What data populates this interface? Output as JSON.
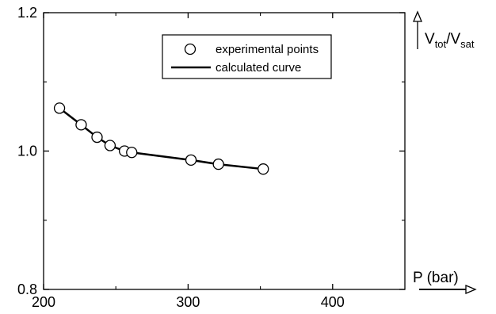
{
  "chart_data": {
    "type": "line",
    "x_ticks": [
      200,
      300,
      400
    ],
    "y_ticks": [
      0.8,
      1.0,
      1.2
    ],
    "xlim": [
      200,
      450
    ],
    "ylim": [
      0.8,
      1.2
    ],
    "x_axis_label": "P (bar)",
    "y_axis_label": {
      "base": "V",
      "sub1": "tot",
      "slash": "/",
      "base2": "V",
      "sub2": "sat"
    },
    "legend": {
      "position": "top-right",
      "entries": [
        {
          "label": "experimental points",
          "marker": "circle"
        },
        {
          "label": "calculated curve",
          "marker": "line"
        }
      ]
    },
    "series": [
      {
        "kind": "points",
        "x": [
          211,
          226,
          237,
          246,
          256,
          261,
          302,
          321,
          352
        ],
        "y": [
          1.062,
          1.038,
          1.02,
          1.008,
          1.0,
          0.998,
          0.987,
          0.981,
          0.974
        ]
      },
      {
        "kind": "curve",
        "x": [
          211,
          226,
          237,
          246,
          256,
          261,
          302,
          321,
          352
        ],
        "y": [
          1.062,
          1.038,
          1.02,
          1.008,
          1.0,
          0.998,
          0.987,
          0.981,
          0.974
        ]
      }
    ],
    "grid": false,
    "colors": {
      "line": "#000000",
      "marker_fill": "#ffffff",
      "marker_stroke": "#000000"
    }
  }
}
